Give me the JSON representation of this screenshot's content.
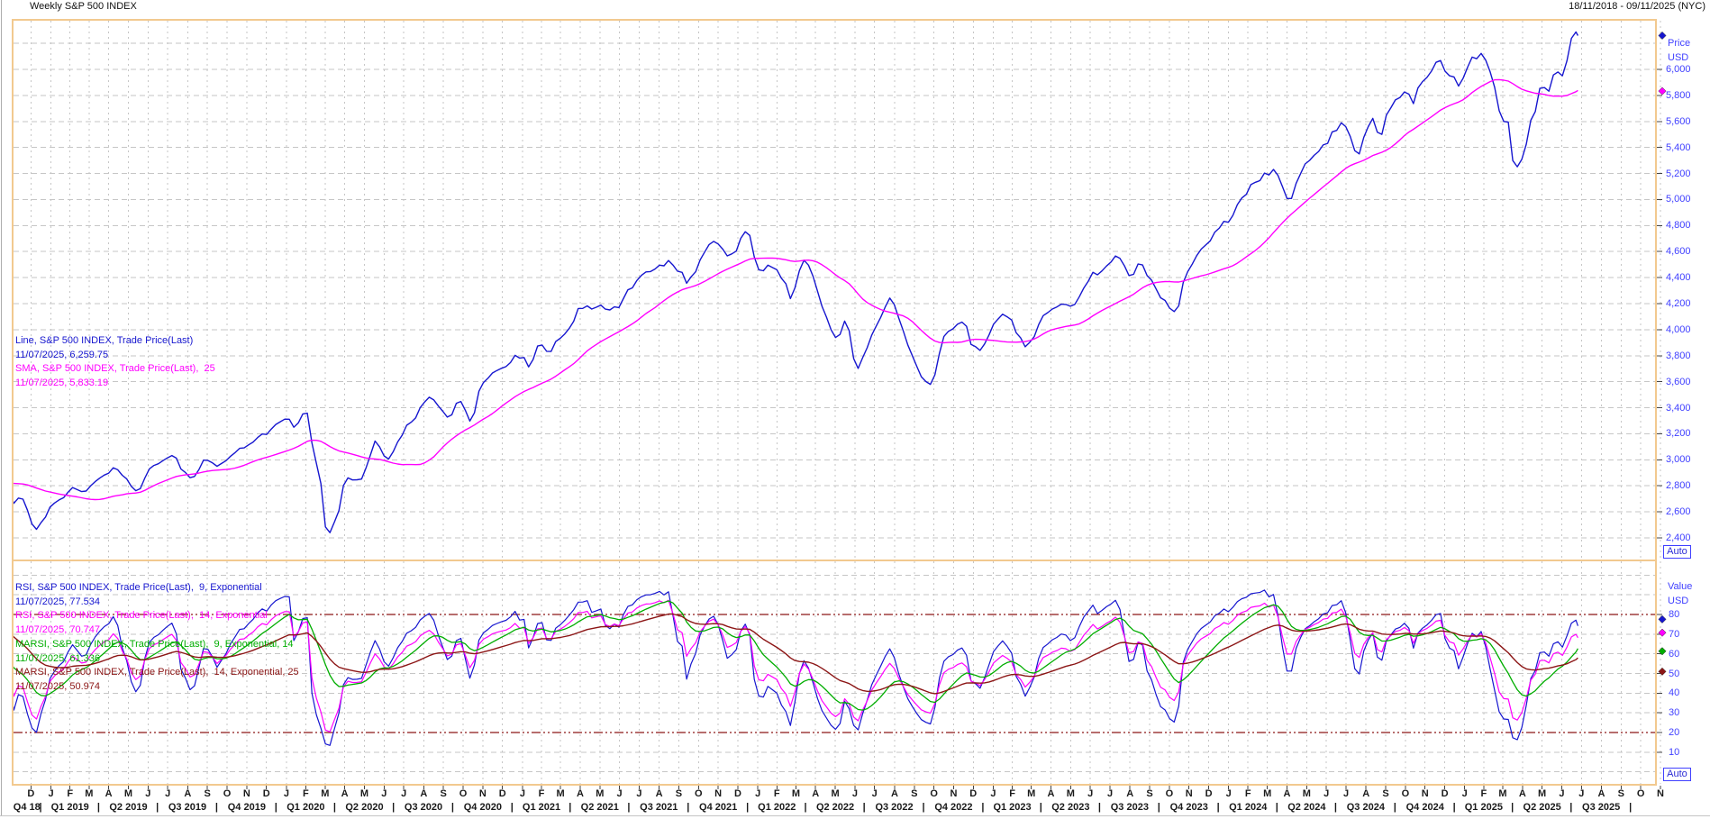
{
  "header": {
    "title": "Weekly S&P 500 INDEX",
    "date_range": "18/11/2018 - 09/11/2025 (NYC)"
  },
  "colors": {
    "line": "#1616cf",
    "sma": "#ff00ff",
    "rsi9": "#1616cf",
    "rsi14": "#ff00ff",
    "marsi9": "#00ad00",
    "marsi14": "#8c1616",
    "axis_text": "#4040ff",
    "panel_border": "#f2c98f",
    "grid": "#c6c6c6",
    "band": "#8c1616",
    "tick": "#444444",
    "text": "#1a1a1a"
  },
  "price_axis": {
    "title": "Price",
    "currency": "USD",
    "auto_label": "Auto"
  },
  "value_axis": {
    "title": "Value",
    "currency": "USD",
    "auto_label": "Auto"
  },
  "main_legend": [
    {
      "text": "Line, S&P 500 INDEX, Trade Price(Last)",
      "color": "line"
    },
    {
      "text": "11/07/2025, 6,259.75",
      "color": "line"
    },
    {
      "text": "SMA, S&P 500 INDEX, Trade Price(Last),  25",
      "color": "sma"
    },
    {
      "text": "11/07/2025, 5,833.19",
      "color": "sma"
    }
  ],
  "rsi_legend": [
    {
      "text": "RSI, S&P 500 INDEX, Trade Price(Last),  9, Exponential",
      "color": "rsi9"
    },
    {
      "text": "11/07/2025, 77.534",
      "color": "rsi9"
    },
    {
      "text": "RSI, S&P 500 INDEX, Trade Price(Last),  14, Exponential",
      "color": "rsi14"
    },
    {
      "text": "11/07/2025, 70.747",
      "color": "rsi14"
    },
    {
      "text": "MARSI, S&P 500 INDEX, Trade Price(Last),  9, Exponential, 14",
      "color": "marsi9"
    },
    {
      "text": "11/07/2025, 61.336",
      "color": "marsi9"
    },
    {
      "text": "MARSI, S&P 500 INDEX, Trade Price(Last),  14, Exponential, 25",
      "color": "marsi14"
    },
    {
      "text": "11/07/2025, 50.974",
      "color": "marsi14"
    }
  ],
  "chart_data": {
    "type": "line",
    "title": "Weekly S&P 500 INDEX",
    "x_axis": {
      "start_date": "2018-11-18",
      "end_date": "2025-11-09",
      "month_labels": [
        "D",
        "J",
        "F",
        "M",
        "A",
        "M",
        "J",
        "J",
        "A",
        "S",
        "O",
        "N",
        "D",
        "J",
        "F",
        "M",
        "A",
        "M",
        "J",
        "J",
        "A",
        "S",
        "O",
        "N",
        "D",
        "J",
        "F",
        "M",
        "A",
        "M",
        "J",
        "J",
        "A",
        "S",
        "O",
        "N",
        "D",
        "J",
        "F",
        "M",
        "A",
        "M",
        "J",
        "J",
        "A",
        "S",
        "O",
        "N",
        "D",
        "J",
        "F",
        "M",
        "A",
        "M",
        "J",
        "J",
        "A",
        "S",
        "O",
        "N",
        "D",
        "J",
        "F",
        "M",
        "A",
        "M",
        "J",
        "J",
        "A",
        "S",
        "O",
        "N",
        "D",
        "J",
        "F",
        "M",
        "A",
        "M",
        "J",
        "J",
        "A",
        "S",
        "O",
        "N"
      ],
      "quarter_labels": [
        "Q4 18",
        "Q1 2019",
        "Q2 2019",
        "Q3 2019",
        "Q4 2019",
        "Q1 2020",
        "Q2 2020",
        "Q3 2020",
        "Q4 2020",
        "Q1 2021",
        "Q2 2021",
        "Q3 2021",
        "Q4 2021",
        "Q1 2022",
        "Q2 2022",
        "Q3 2022",
        "Q4 2022",
        "Q1 2023",
        "Q2 2023",
        "Q3 2023",
        "Q4 2023",
        "Q1 2024",
        "Q2 2024",
        "Q3 2024",
        "Q4 2024",
        "Q1 2025",
        "Q2 2025",
        "Q3 2025"
      ]
    },
    "panels": [
      {
        "name": "price",
        "y_axis_label": "Price USD",
        "y_ticks": [
          6000,
          5800,
          5600,
          5400,
          5200,
          5000,
          4800,
          4600,
          4400,
          4200,
          4000,
          3800,
          3600,
          3400,
          3200,
          3000,
          2800,
          2600,
          2400
        ],
        "grid": true,
        "series": [
          {
            "name": "Line, S&P 500 INDEX, Trade Price(Last)",
            "color_key": "line",
            "last_date": "11/07/2025",
            "last_value": 6259.75,
            "points_day_price": [
              [
                5,
                2632
              ],
              [
                12,
                2760
              ],
              [
                19,
                2633
              ],
              [
                26,
                2600
              ],
              [
                33,
                2417
              ],
              [
                40,
                2486
              ],
              [
                47,
                2532
              ],
              [
                61,
                2671
              ],
              [
                75,
                2707
              ],
              [
                96,
                2793
              ],
              [
                110,
                2743
              ],
              [
                131,
                2834
              ],
              [
                151,
                2905
              ],
              [
                159,
                2940
              ],
              [
                173,
                2881
              ],
              [
                194,
                2752
              ],
              [
                215,
                2950
              ],
              [
                229,
                2990
              ],
              [
                250,
                3026
              ],
              [
                264,
                2919
              ],
              [
                278,
                2847
              ],
              [
                299,
                3007
              ],
              [
                320,
                2952
              ],
              [
                348,
                3067
              ],
              [
                376,
                3141
              ],
              [
                404,
                3240
              ],
              [
                425,
                3330
              ],
              [
                439,
                3225
              ],
              [
                453,
                3380
              ],
              [
                460,
                3338
              ],
              [
                467,
                2954
              ],
              [
                474,
                2972
              ],
              [
                481,
                2711
              ],
              [
                488,
                2305
              ],
              [
                495,
                2541
              ],
              [
                502,
                2489
              ],
              [
                516,
                2875
              ],
              [
                530,
                2831
              ],
              [
                544,
                2864
              ],
              [
                565,
                3194
              ],
              [
                572,
                3041
              ],
              [
                586,
                3009
              ],
              [
                607,
                3225
              ],
              [
                628,
                3351
              ],
              [
                649,
                3508
              ],
              [
                656,
                3427
              ],
              [
                677,
                3298
              ],
              [
                691,
                3477
              ],
              [
                712,
                3270
              ],
              [
                726,
                3585
              ],
              [
                740,
                3638
              ],
              [
                761,
                3709
              ],
              [
                774,
                3756
              ],
              [
                782,
                3825
              ],
              [
                803,
                3714
              ],
              [
                817,
                3935
              ],
              [
                831,
                3811
              ],
              [
                845,
                3943
              ],
              [
                859,
                3975
              ],
              [
                880,
                4185
              ],
              [
                908,
                4174
              ],
              [
                943,
                4166
              ],
              [
                950,
                4281
              ],
              [
                978,
                4412
              ],
              [
                1013,
                4509
              ],
              [
                1020,
                4535
              ],
              [
                1048,
                4357
              ],
              [
                1069,
                4545
              ],
              [
                1083,
                4698
              ],
              [
                1104,
                4595
              ],
              [
                1111,
                4538
              ],
              [
                1139,
                4766
              ],
              [
                1160,
                4398
              ],
              [
                1174,
                4501
              ],
              [
                1195,
                4385
              ],
              [
                1209,
                4204
              ],
              [
                1223,
                4543
              ],
              [
                1237,
                4488
              ],
              [
                1258,
                4132
              ],
              [
                1279,
                3901
              ],
              [
                1293,
                4109
              ],
              [
                1307,
                3675
              ],
              [
                1321,
                3825
              ],
              [
                1349,
                4130
              ],
              [
                1363,
                4280
              ],
              [
                1384,
                3924
              ],
              [
                1412,
                3586
              ],
              [
                1426,
                3583
              ],
              [
                1440,
                3901
              ],
              [
                1454,
                3993
              ],
              [
                1475,
                4072
              ],
              [
                1489,
                3852
              ],
              [
                1503,
                3840
              ],
              [
                1517,
                3999
              ],
              [
                1538,
                4136
              ],
              [
                1573,
                3862
              ],
              [
                1587,
                3971
              ],
              [
                1594,
                4109
              ],
              [
                1622,
                4169
              ],
              [
                1650,
                4205
              ],
              [
                1671,
                4410
              ],
              [
                1685,
                4450
              ],
              [
                1713,
                4582
              ],
              [
                1734,
                4370
              ],
              [
                1748,
                4516
              ],
              [
                1776,
                4288
              ],
              [
                1804,
                4117
              ],
              [
                1818,
                4415
              ],
              [
                1839,
                4595
              ],
              [
                1867,
                4770
              ],
              [
                1888,
                4840
              ],
              [
                1909,
                5027
              ],
              [
                1930,
                5137
              ],
              [
                1957,
                5254
              ],
              [
                1979,
                4967
              ],
              [
                2007,
                5303
              ],
              [
                2035,
                5431
              ],
              [
                2063,
                5615
              ],
              [
                2084,
                5346
              ],
              [
                2091,
                5344
              ],
              [
                2098,
                5554
              ],
              [
                2112,
                5648
              ],
              [
                2119,
                5408
              ],
              [
                2133,
                5702
              ],
              [
                2140,
                5738
              ],
              [
                2154,
                5815
              ],
              [
                2161,
                5865
              ],
              [
                2175,
                5729
              ],
              [
                2182,
                5996
              ],
              [
                2189,
                5871
              ],
              [
                2203,
                6032
              ],
              [
                2210,
                6090
              ],
              [
                2224,
                5931
              ],
              [
                2231,
                5971
              ],
              [
                2245,
                5827
              ],
              [
                2259,
                6101
              ],
              [
                2280,
                6115
              ],
              [
                2287,
                6013
              ],
              [
                2294,
                5955
              ],
              [
                2301,
                5770
              ],
              [
                2308,
                5639
              ],
              [
                2322,
                5581
              ],
              [
                2329,
                5074
              ],
              [
                2336,
                5363
              ],
              [
                2343,
                5283
              ],
              [
                2350,
                5525
              ],
              [
                2357,
                5687
              ],
              [
                2364,
                5660
              ],
              [
                2371,
                5958
              ],
              [
                2378,
                5803
              ],
              [
                2392,
                6000
              ],
              [
                2406,
                5968
              ],
              [
                2413,
                6173
              ],
              [
                2419,
                6279
              ],
              [
                2427,
                6259.75
              ]
            ]
          },
          {
            "name": "SMA, S&P 500 INDEX, Trade Price(Last), 25",
            "color_key": "sma",
            "derived": "sma",
            "period": 25,
            "last_date": "11/07/2025",
            "last_value": 5833.19
          }
        ],
        "markers": [
          {
            "value": 6259.75,
            "color_key": "line"
          },
          {
            "value": 5833.19,
            "color_key": "sma"
          }
        ]
      },
      {
        "name": "rsi",
        "y_axis_label": "Value USD",
        "y_ticks": [
          80,
          70,
          60,
          50,
          40,
          30,
          20,
          10
        ],
        "bands": [
          80,
          20
        ],
        "grid": true,
        "series": [
          {
            "name": "RSI, S&P 500 INDEX, Trade Price(Last), 9, Exponential",
            "color_key": "rsi9",
            "derived": "rsi",
            "period": 9,
            "last_date": "11/07/2025",
            "last_value": 77.534
          },
          {
            "name": "RSI, S&P 500 INDEX, Trade Price(Last), 14, Exponential",
            "color_key": "rsi14",
            "derived": "rsi",
            "period": 14,
            "last_date": "11/07/2025",
            "last_value": 70.747
          },
          {
            "name": "MARSI, S&P 500 INDEX, Trade Price(Last), 9, Exponential, 14",
            "color_key": "marsi9",
            "derived": "ema_of_rsi",
            "rsi_period": 9,
            "ema_period": 14,
            "last_date": "11/07/2025",
            "last_value": 61.336
          },
          {
            "name": "MARSI, S&P 500 INDEX, Trade Price(Last), 14, Exponential, 25",
            "color_key": "marsi14",
            "derived": "ema_of_rsi",
            "rsi_period": 14,
            "ema_period": 25,
            "last_date": "11/07/2025",
            "last_value": 50.974
          }
        ],
        "markers": [
          {
            "value": 77.534,
            "color_key": "rsi9"
          },
          {
            "value": 70.747,
            "color_key": "rsi14"
          },
          {
            "value": 61.336,
            "color_key": "marsi9"
          },
          {
            "value": 50.974,
            "color_key": "marsi14"
          }
        ]
      }
    ]
  }
}
